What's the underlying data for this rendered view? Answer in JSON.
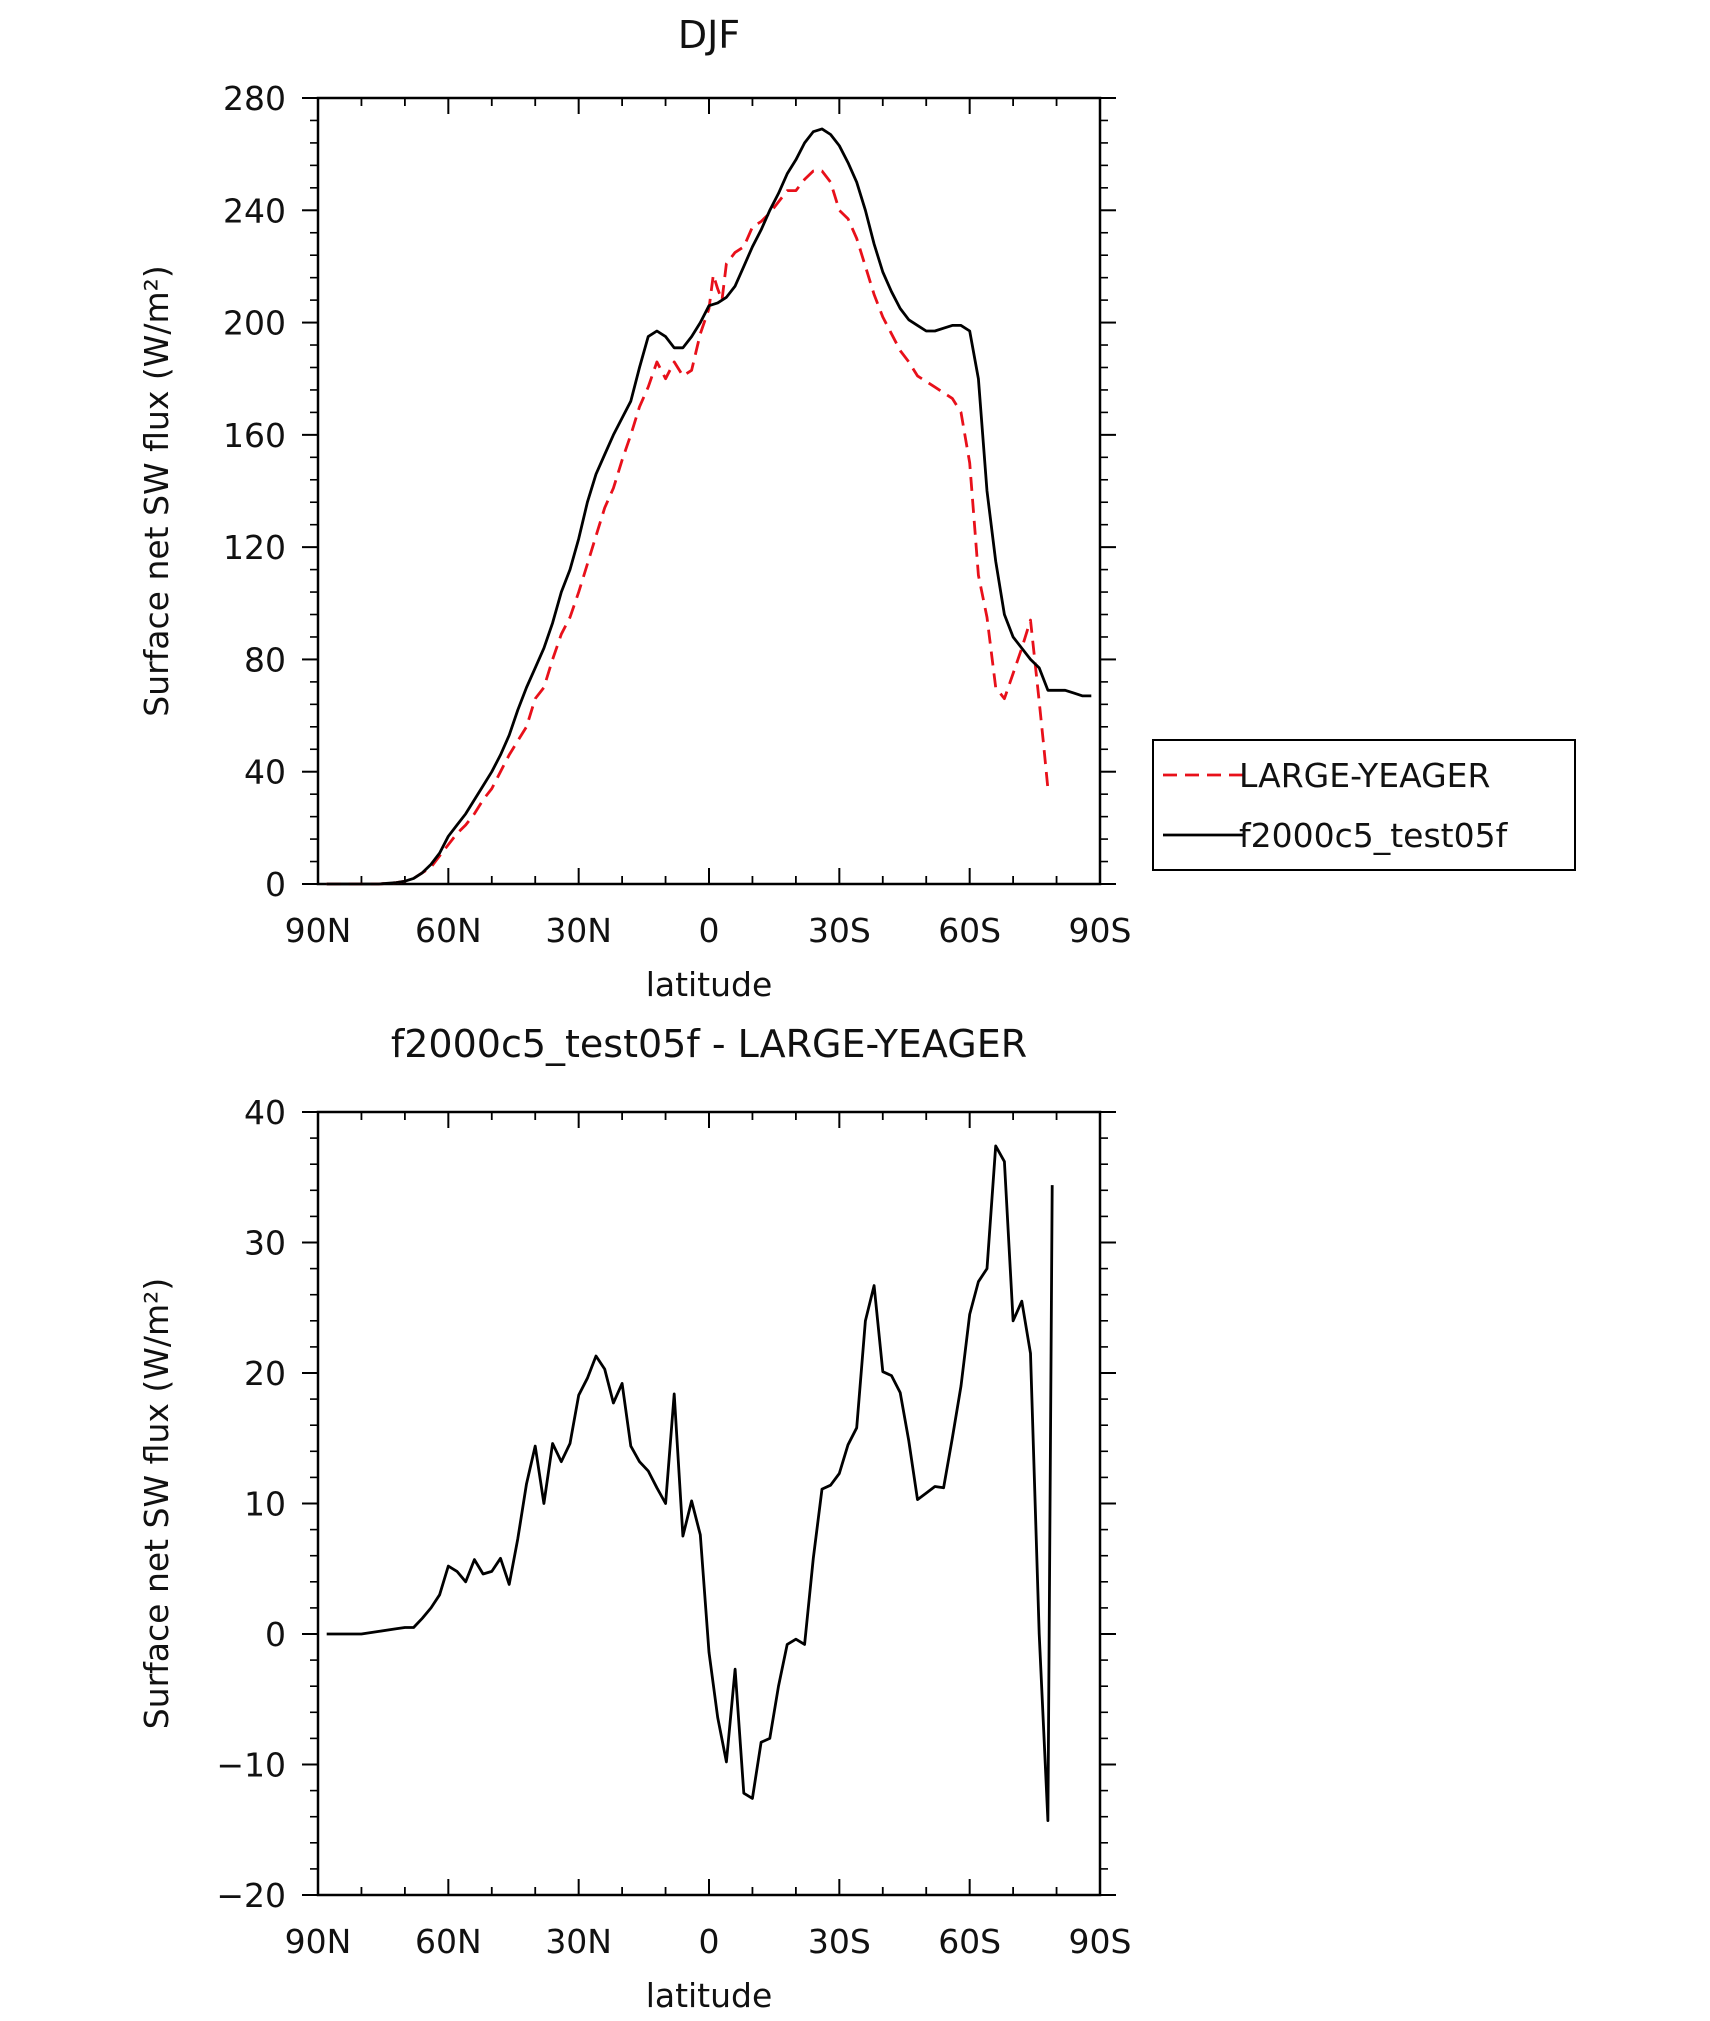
{
  "chart_data": [
    {
      "type": "line",
      "title": "DJF",
      "xlabel": "latitude",
      "ylabel": "Surface net SW flux (W/m²)",
      "xlim": [
        90,
        -90
      ],
      "ylim": [
        0,
        280
      ],
      "xticks": [
        90,
        60,
        30,
        0,
        -30,
        -60,
        -90
      ],
      "xtick_labels": [
        "90N",
        "60N",
        "30N",
        "0",
        "30S",
        "60S",
        "90S"
      ],
      "yticks": [
        0,
        40,
        80,
        120,
        160,
        200,
        240,
        280
      ],
      "ytick_labels": [
        "0",
        "40",
        "80",
        "120",
        "160",
        "200",
        "240",
        "280"
      ],
      "legend_position": "right",
      "series": [
        {
          "name": "LARGE-YEAGER",
          "color": "#e8101a",
          "dash": "dashed",
          "x": [
            88,
            84,
            80,
            76,
            72,
            70,
            68,
            66,
            64,
            62,
            60,
            58,
            56,
            54,
            52,
            50,
            48,
            46,
            44,
            42,
            40,
            38,
            36,
            34,
            32,
            30,
            28,
            26,
            24,
            22,
            20,
            18,
            16,
            14,
            12,
            10,
            8,
            6,
            4,
            2,
            0,
            -1,
            -2,
            -3,
            -4,
            -6,
            -8,
            -10,
            -12,
            -14,
            -16,
            -18,
            -20,
            -22,
            -24,
            -26,
            -28,
            -30,
            -32,
            -34,
            -36,
            -38,
            -40,
            -42,
            -44,
            -46,
            -48,
            -50,
            -52,
            -54,
            -56,
            -58,
            -60,
            -62,
            -64,
            -66,
            -68,
            -70,
            -72,
            -74,
            -76,
            -77,
            -78,
            -79
          ],
          "y": [
            0,
            0,
            0,
            0,
            0.5,
            1,
            2,
            4,
            6,
            10,
            14,
            18,
            21,
            25,
            30,
            34,
            40,
            46,
            51,
            56,
            66,
            70,
            80,
            89,
            95,
            104,
            114,
            124,
            134,
            141,
            151,
            160,
            170,
            177,
            186,
            180,
            186,
            181,
            183,
            196,
            205,
            217,
            212,
            208,
            221,
            225,
            227,
            234,
            236,
            239,
            243,
            247,
            247,
            251,
            254,
            254,
            250,
            240,
            237,
            230,
            220,
            210,
            202,
            196,
            190,
            186,
            181,
            179,
            177,
            175,
            173,
            168,
            150,
            110,
            95,
            70,
            66,
            75,
            84,
            94,
            65,
            50,
            34,
            34
          ]
        },
        {
          "name": "f2000c5_test05f",
          "color": "#000000",
          "dash": "solid",
          "x": [
            88,
            84,
            80,
            76,
            72,
            70,
            68,
            66,
            64,
            62,
            60,
            58,
            56,
            54,
            52,
            50,
            48,
            46,
            44,
            42,
            40,
            38,
            36,
            34,
            32,
            30,
            28,
            26,
            24,
            22,
            20,
            18,
            16,
            14,
            12,
            10,
            8,
            6,
            4,
            2,
            0,
            -2,
            -4,
            -6,
            -8,
            -10,
            -12,
            -14,
            -16,
            -18,
            -20,
            -22,
            -24,
            -26,
            -28,
            -30,
            -32,
            -34,
            -36,
            -38,
            -40,
            -42,
            -44,
            -46,
            -48,
            -50,
            -52,
            -54,
            -56,
            -58,
            -60,
            -62,
            -64,
            -66,
            -68,
            -70,
            -72,
            -74,
            -76,
            -78,
            -80,
            -82,
            -84,
            -86,
            -88
          ],
          "y": [
            0,
            0,
            0,
            0,
            0.5,
            1,
            2,
            4,
            7,
            11,
            17,
            21,
            25,
            30,
            35,
            40,
            46,
            53,
            62,
            70,
            77,
            84,
            93,
            104,
            112,
            123,
            136,
            146,
            153,
            160,
            166,
            172,
            184,
            195,
            197,
            195,
            191,
            191,
            195,
            200,
            206,
            207,
            209,
            213,
            220,
            227,
            233,
            240,
            246,
            253,
            258,
            264,
            268,
            269,
            267,
            263,
            257,
            250,
            240,
            228,
            218,
            211,
            205,
            201,
            199,
            197,
            197,
            198,
            199,
            199,
            197,
            180,
            140,
            115,
            96,
            88,
            84,
            80,
            77,
            69,
            69,
            69,
            68,
            67,
            67
          ]
        }
      ]
    },
    {
      "type": "line",
      "title": "f2000c5_test05f - LARGE-YEAGER",
      "xlabel": "latitude",
      "ylabel": "Surface net SW flux (W/m²)",
      "xlim": [
        90,
        -90
      ],
      "ylim": [
        -20,
        40
      ],
      "xticks": [
        90,
        60,
        30,
        0,
        -30,
        -60,
        -90
      ],
      "xtick_labels": [
        "90N",
        "60N",
        "30N",
        "0",
        "30S",
        "60S",
        "90S"
      ],
      "yticks": [
        -20,
        -10,
        0,
        10,
        20,
        30,
        40
      ],
      "ytick_labels": [
        "−20",
        "−10",
        "0",
        "10",
        "20",
        "30",
        "40"
      ],
      "series": [
        {
          "color": "#000000",
          "dash": "solid",
          "x": [
            88,
            84,
            80,
            76,
            72,
            70,
            68,
            66,
            64,
            62,
            60,
            58,
            56,
            54,
            52,
            50,
            48,
            46,
            44,
            42,
            40,
            38,
            36,
            34,
            32,
            30,
            28,
            26,
            24,
            22,
            20,
            18,
            16,
            14,
            12,
            10,
            8,
            6,
            4,
            2,
            0,
            -2,
            -4,
            -6,
            -8,
            -10,
            -12,
            -14,
            -16,
            -18,
            -20,
            -22,
            -24,
            -26,
            -28,
            -30,
            -32,
            -34,
            -36,
            -38,
            -40,
            -42,
            -44,
            -46,
            -48,
            -50,
            -52,
            -54,
            -56,
            -58,
            -60,
            -62,
            -64,
            -66,
            -68,
            -70,
            -72,
            -74,
            -76,
            -78,
            -79
          ],
          "y": [
            0,
            0,
            0,
            0.2,
            0.4,
            0.5,
            0.5,
            1.2,
            2,
            3,
            5.2,
            4.8,
            4,
            5.7,
            4.6,
            4.8,
            5.8,
            3.8,
            7.3,
            11.5,
            14.4,
            10,
            14.6,
            13.2,
            14.6,
            18.3,
            19.6,
            21.3,
            20.3,
            17.7,
            19.2,
            14.4,
            13.2,
            12.5,
            11.2,
            10,
            18.4,
            7.5,
            10.2,
            7.6,
            -1.4,
            -6.4,
            -9.8,
            -2.7,
            -12.2,
            -12.6,
            -8.3,
            -8,
            -4,
            -0.8,
            -0.4,
            -0.8,
            5.8,
            11.1,
            11.4,
            12.3,
            14.5,
            15.8,
            24,
            26.7,
            20.1,
            19.8,
            18.5,
            14.8,
            10.3,
            10.8,
            11.3,
            11.2,
            15,
            19,
            24.5,
            27,
            28,
            37.4,
            36.2,
            24,
            25.5,
            21.5,
            0,
            -14.3,
            34.4
          ]
        }
      ]
    }
  ]
}
